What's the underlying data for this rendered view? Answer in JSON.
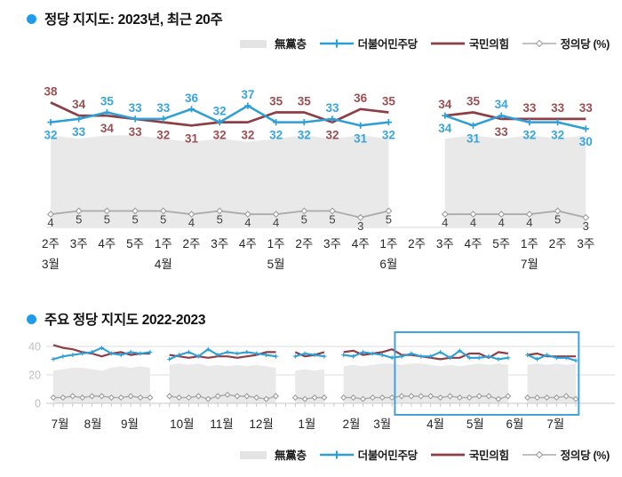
{
  "colors": {
    "blue": "#2D9FD8",
    "blue_label": "#38A5DE",
    "red": "#8C3F44",
    "red_label": "#9C4F53",
    "gray_area": "#E9E9E9",
    "gray_line": "#ABABAB",
    "gray_label": "#3F3F3F",
    "axis": "#C9C9C9",
    "grid": "#DCDCDC",
    "tick_label": "#262626",
    "y_label": "#BFBFBF",
    "highlight": "#41A2DE",
    "bullet": "#1E9BE9"
  },
  "legend": {
    "items": [
      {
        "id": "mudang",
        "label": "無黨층",
        "type": "area"
      },
      {
        "id": "minju",
        "label": "더불어민주당",
        "type": "line-plus"
      },
      {
        "id": "kukmin",
        "label": "국민의힘",
        "type": "line"
      },
      {
        "id": "jungui",
        "label": "정의당 (%)",
        "type": "line-diamond"
      }
    ]
  },
  "chart_data": [
    {
      "id": "top",
      "type": "line",
      "title": "정당 지지도: 2023년, 최근 20주",
      "unit": "%",
      "x_weeks": [
        "2주",
        "3주",
        "4주",
        "5주",
        "1주",
        "2주",
        "3주",
        "4주",
        "1주",
        "2주",
        "3주",
        "4주",
        "1주",
        "2주",
        "3주",
        "4주",
        "5주",
        "1주",
        "2주",
        "3주"
      ],
      "x_months": [
        {
          "label": "3월",
          "week": 0
        },
        {
          "label": "4월",
          "week": 4
        },
        {
          "label": "5월",
          "week": 8
        },
        {
          "label": "6월",
          "week": 12
        },
        {
          "label": "7월",
          "week": 17
        }
      ],
      "gap_weeks": [
        13
      ],
      "ylim": [
        0,
        45
      ],
      "series": [
        {
          "name": "더불어민주당",
          "role": "line",
          "color_key": "blue",
          "values": [
            32,
            33,
            35,
            33,
            33,
            36,
            32,
            37,
            32,
            32,
            33,
            31,
            32,
            null,
            34,
            31,
            34,
            32,
            32,
            30
          ]
        },
        {
          "name": "국민의힘",
          "role": "line",
          "color_key": "red",
          "values": [
            38,
            34,
            34,
            33,
            32,
            31,
            32,
            32,
            35,
            35,
            32,
            36,
            35,
            null,
            34,
            35,
            33,
            33,
            33,
            33
          ]
        },
        {
          "name": "정의당",
          "role": "line",
          "color_key": "gray",
          "values": [
            4,
            5,
            5,
            5,
            5,
            4,
            5,
            4,
            4,
            5,
            5,
            3,
            5,
            null,
            4,
            4,
            4,
            4,
            5,
            3
          ]
        },
        {
          "name": "無黨층",
          "role": "area",
          "estimated": true,
          "values": [
            28,
            27,
            28,
            28,
            27,
            26,
            27,
            26,
            27,
            28,
            27,
            28,
            27,
            null,
            27,
            28,
            27,
            28,
            27,
            28
          ]
        }
      ],
      "label_top": [
        "kukmin",
        "kukmin",
        "minju",
        "minju",
        "minju",
        "minju",
        "minju",
        "minju",
        "kukmin",
        "kukmin",
        "minju",
        "kukmin",
        "kukmin",
        null,
        "kukmin",
        "kukmin",
        "minju",
        "kukmin",
        "kukmin",
        "kukmin"
      ]
    },
    {
      "id": "bottom",
      "type": "line",
      "title": "주요 정당 지지도 2022-2023",
      "unit": "%",
      "y_ticks": [
        0,
        20,
        40
      ],
      "ylim": [
        0,
        48
      ],
      "n_slots": 55,
      "months": [
        {
          "label": "7월",
          "slot": 0.7
        },
        {
          "label": "8월",
          "slot": 4.1
        },
        {
          "label": "9월",
          "slot": 7.9
        },
        {
          "label": "10월",
          "slot": 13.3
        },
        {
          "label": "11월",
          "slot": 17.4
        },
        {
          "label": "12월",
          "slot": 21.5
        },
        {
          "label": "1월",
          "slot": 26.2
        },
        {
          "label": "2월",
          "slot": 30.8
        },
        {
          "label": "3월",
          "slot": 34.0
        },
        {
          "label": "4월",
          "slot": 39.5
        },
        {
          "label": "5월",
          "slot": 43.6
        },
        {
          "label": "6월",
          "slot": 47.7
        },
        {
          "label": "7월",
          "slot": 51.9
        }
      ],
      "series": [
        {
          "name": "더불어민주당",
          "role": "line",
          "color_key": "blue",
          "estimated": true,
          "values": [
            31,
            33,
            34,
            35,
            36,
            39,
            35,
            34,
            36,
            35,
            36,
            null,
            31,
            34,
            36,
            33,
            38,
            34,
            36,
            35,
            36,
            35,
            34,
            33,
            null,
            33,
            35,
            34,
            33,
            null,
            34,
            33,
            36,
            35,
            34,
            32,
            33,
            35,
            33,
            33,
            36,
            32,
            37,
            32,
            32,
            33,
            31,
            32,
            null,
            34,
            31,
            34,
            32,
            32,
            30
          ]
        },
        {
          "name": "국민의힘",
          "role": "line",
          "color_key": "red",
          "estimated": true,
          "values": [
            41,
            39,
            38,
            36,
            35,
            33,
            35,
            36,
            34,
            35,
            35,
            null,
            34,
            33,
            32,
            33,
            32,
            33,
            33,
            32,
            33,
            34,
            36,
            36,
            null,
            36,
            33,
            34,
            36,
            null,
            36,
            37,
            34,
            35,
            36,
            38,
            34,
            34,
            33,
            32,
            31,
            32,
            32,
            35,
            35,
            32,
            36,
            35,
            null,
            34,
            35,
            33,
            33,
            33,
            33
          ]
        },
        {
          "name": "정의당",
          "role": "line",
          "color_key": "gray",
          "estimated": true,
          "values": [
            4,
            4,
            5,
            4,
            5,
            5,
            4,
            4,
            5,
            4,
            4,
            null,
            5,
            4,
            4,
            5,
            3,
            5,
            6,
            5,
            5,
            4,
            3,
            5,
            null,
            4,
            3,
            4,
            4,
            null,
            4,
            4,
            3,
            4,
            4,
            4,
            5,
            5,
            5,
            5,
            4,
            5,
            4,
            4,
            5,
            5,
            3,
            5,
            null,
            4,
            4,
            4,
            4,
            5,
            3
          ]
        },
        {
          "name": "無黨층",
          "role": "area",
          "estimated": true,
          "values": [
            23,
            24,
            25,
            25,
            24,
            23,
            25,
            26,
            25,
            26,
            25,
            null,
            27,
            28,
            27,
            28,
            26,
            27,
            26,
            27,
            26,
            27,
            26,
            25,
            null,
            23,
            24,
            23,
            24,
            null,
            26,
            27,
            26,
            27,
            28,
            28,
            27,
            28,
            28,
            27,
            26,
            27,
            26,
            27,
            28,
            27,
            28,
            27,
            null,
            27,
            28,
            27,
            28,
            27,
            28
          ]
        }
      ],
      "highlight_rect": {
        "from_slot": 35.3,
        "to_slot": 54.3
      }
    }
  ]
}
